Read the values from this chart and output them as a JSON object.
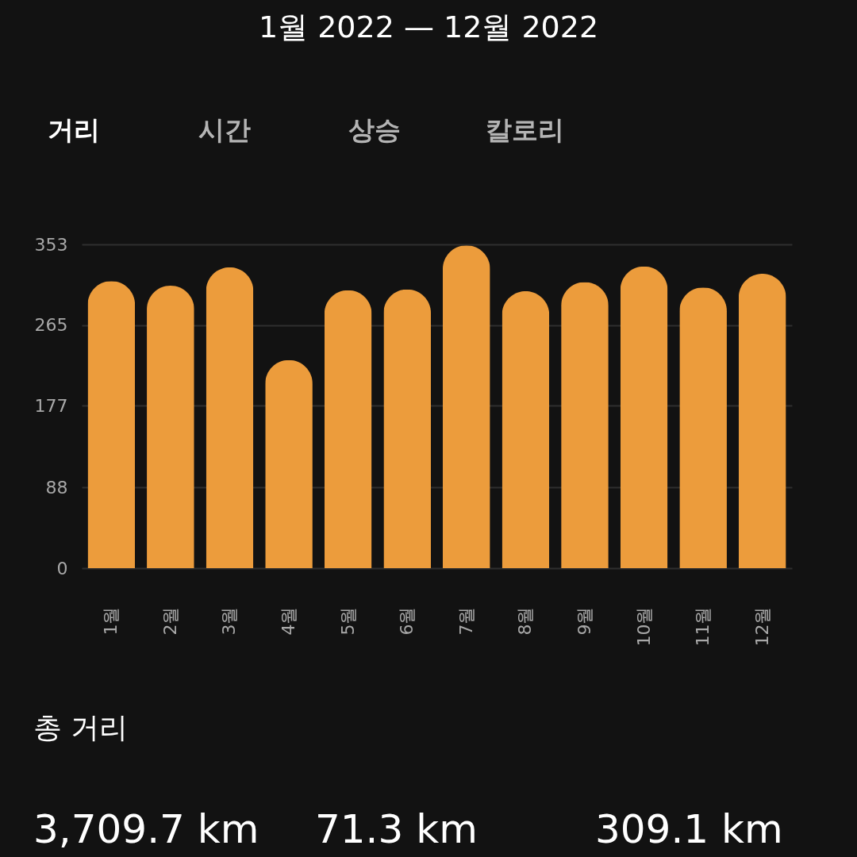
{
  "chart_data": {
    "type": "bar",
    "title": "1월 2022 — 12월 2022",
    "categories": [
      "1월",
      "2월",
      "3월",
      "4월",
      "5월",
      "6월",
      "7월",
      "8월",
      "9월",
      "10월",
      "11월",
      "12월"
    ],
    "values": [
      313,
      308,
      328,
      227,
      303,
      304,
      352,
      302,
      312,
      329,
      306,
      321
    ],
    "color": "#ec9c3c",
    "ylim": [
      0,
      353
    ],
    "yticks": [
      0,
      88,
      177,
      265,
      353
    ],
    "grid": "y",
    "annotations": [
      "거리",
      "시간",
      "상승",
      "칼로리",
      "총 거리",
      "3,709.7 km",
      "71.3 km",
      "309.1 km"
    ]
  }
}
